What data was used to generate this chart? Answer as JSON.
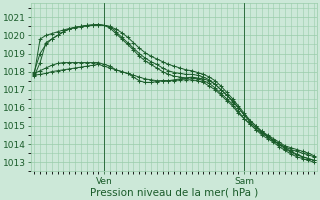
{
  "bg_color": "#cce8d8",
  "grid_color": "#99ccaa",
  "line_color": "#1a5c2a",
  "xlabel": "Pression niveau de la mer( hPa )",
  "yticks": [
    1013,
    1014,
    1015,
    1016,
    1017,
    1018,
    1019,
    1020,
    1021
  ],
  "ylim": [
    1012.5,
    1021.8
  ],
  "xlim": [
    -0.5,
    48.5
  ],
  "ven_x": 12,
  "sam_x": 36,
  "series": [
    [
      1017.8,
      1017.85,
      1017.9,
      1018.0,
      1018.05,
      1018.1,
      1018.15,
      1018.2,
      1018.25,
      1018.3,
      1018.35,
      1018.4,
      1018.3,
      1018.2,
      1018.1,
      1018.0,
      1017.9,
      1017.8,
      1017.7,
      1017.6,
      1017.55,
      1017.5,
      1017.5,
      1017.5,
      1017.55,
      1017.6,
      1017.65,
      1017.7,
      1017.65,
      1017.6,
      1017.5,
      1017.3,
      1017.0,
      1016.7,
      1016.4,
      1016.0,
      1015.6,
      1015.3,
      1015.0,
      1014.7,
      1014.5,
      1014.3,
      1014.1,
      1013.9,
      1013.8,
      1013.7,
      1013.6,
      1013.5,
      1013.35
    ],
    [
      1017.9,
      1018.05,
      1018.2,
      1018.35,
      1018.45,
      1018.5,
      1018.5,
      1018.5,
      1018.5,
      1018.5,
      1018.5,
      1018.5,
      1018.4,
      1018.3,
      1018.1,
      1018.0,
      1017.9,
      1017.7,
      1017.5,
      1017.4,
      1017.4,
      1017.45,
      1017.5,
      1017.5,
      1017.5,
      1017.55,
      1017.55,
      1017.55,
      1017.5,
      1017.4,
      1017.2,
      1017.0,
      1016.7,
      1016.4,
      1016.1,
      1015.7,
      1015.4,
      1015.1,
      1014.8,
      1014.6,
      1014.4,
      1014.2,
      1014.0,
      1013.85,
      1013.7,
      1013.6,
      1013.5,
      1013.4,
      1013.3
    ],
    [
      1018.0,
      1019.0,
      1019.5,
      1019.8,
      1020.0,
      1020.2,
      1020.35,
      1020.45,
      1020.5,
      1020.55,
      1020.58,
      1020.6,
      1020.55,
      1020.4,
      1020.1,
      1019.8,
      1019.5,
      1019.2,
      1018.85,
      1018.6,
      1018.4,
      1018.2,
      1018.0,
      1017.85,
      1017.75,
      1017.7,
      1017.65,
      1017.65,
      1017.6,
      1017.5,
      1017.35,
      1017.1,
      1016.8,
      1016.5,
      1016.2,
      1015.8,
      1015.4,
      1015.1,
      1014.8,
      1014.5,
      1014.3,
      1014.1,
      1013.85,
      1013.65,
      1013.45,
      1013.3,
      1013.2,
      1013.1,
      1013.0
    ],
    [
      1017.75,
      1018.5,
      1019.6,
      1019.8,
      1020.0,
      1020.2,
      1020.35,
      1020.45,
      1020.5,
      1020.55,
      1020.58,
      1020.6,
      1020.55,
      1020.5,
      1020.2,
      1019.9,
      1019.6,
      1019.3,
      1019.0,
      1018.75,
      1018.55,
      1018.4,
      1018.2,
      1018.05,
      1017.95,
      1017.9,
      1017.85,
      1017.85,
      1017.8,
      1017.7,
      1017.55,
      1017.3,
      1017.0,
      1016.7,
      1016.35,
      1016.0,
      1015.6,
      1015.2,
      1014.9,
      1014.65,
      1014.4,
      1014.2,
      1014.0,
      1013.8,
      1013.6,
      1013.45,
      1013.3,
      1013.2,
      1013.1
    ],
    [
      1017.85,
      1019.8,
      1020.0,
      1020.1,
      1020.2,
      1020.3,
      1020.38,
      1020.43,
      1020.48,
      1020.52,
      1020.55,
      1020.58,
      1020.55,
      1020.48,
      1020.35,
      1020.15,
      1019.9,
      1019.6,
      1019.3,
      1019.05,
      1018.85,
      1018.7,
      1018.55,
      1018.4,
      1018.3,
      1018.2,
      1018.1,
      1018.05,
      1017.95,
      1017.85,
      1017.7,
      1017.5,
      1017.2,
      1016.85,
      1016.5,
      1016.1,
      1015.7,
      1015.3,
      1015.0,
      1014.7,
      1014.45,
      1014.2,
      1013.95,
      1013.75,
      1013.55,
      1013.4,
      1013.3,
      1013.2,
      1013.1
    ]
  ]
}
